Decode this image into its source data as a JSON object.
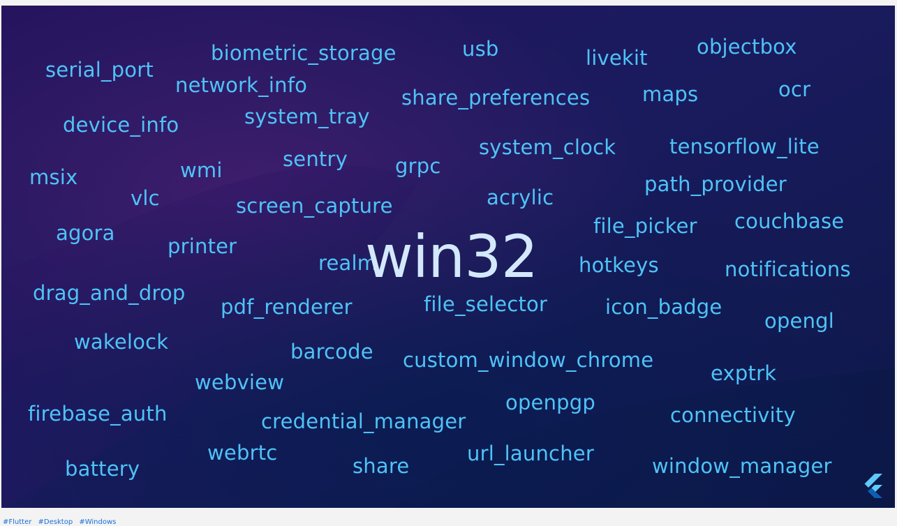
{
  "slide": {
    "center_word": "win32",
    "words": [
      {
        "id": "serial_port",
        "text": "serial_port"
      },
      {
        "id": "biometric_storage",
        "text": "biometric_storage"
      },
      {
        "id": "usb",
        "text": "usb"
      },
      {
        "id": "livekit",
        "text": "livekit"
      },
      {
        "id": "objectbox",
        "text": "objectbox"
      },
      {
        "id": "network_info",
        "text": "network_info"
      },
      {
        "id": "share_preferences",
        "text": "share_preferences"
      },
      {
        "id": "maps",
        "text": "maps"
      },
      {
        "id": "ocr",
        "text": "ocr"
      },
      {
        "id": "device_info",
        "text": "device_info"
      },
      {
        "id": "system_tray",
        "text": "system_tray"
      },
      {
        "id": "system_clock",
        "text": "system_clock"
      },
      {
        "id": "tensorflow_lite",
        "text": "tensorflow_lite"
      },
      {
        "id": "sentry",
        "text": "sentry"
      },
      {
        "id": "msix",
        "text": "msix"
      },
      {
        "id": "wmi",
        "text": "wmi"
      },
      {
        "id": "grpc",
        "text": "grpc"
      },
      {
        "id": "path_provider",
        "text": "path_provider"
      },
      {
        "id": "vlc",
        "text": "vlc"
      },
      {
        "id": "acrylic",
        "text": "acrylic"
      },
      {
        "id": "screen_capture",
        "text": "screen_capture"
      },
      {
        "id": "couchbase",
        "text": "couchbase"
      },
      {
        "id": "agora",
        "text": "agora"
      },
      {
        "id": "file_picker",
        "text": "file_picker"
      },
      {
        "id": "printer",
        "text": "printer"
      },
      {
        "id": "realm",
        "text": "realm"
      },
      {
        "id": "hotkeys",
        "text": "hotkeys"
      },
      {
        "id": "notifications",
        "text": "notifications"
      },
      {
        "id": "drag_and_drop",
        "text": "drag_and_drop"
      },
      {
        "id": "file_selector",
        "text": "file_selector"
      },
      {
        "id": "pdf_renderer",
        "text": "pdf_renderer"
      },
      {
        "id": "icon_badge",
        "text": "icon_badge"
      },
      {
        "id": "opengl",
        "text": "opengl"
      },
      {
        "id": "wakelock",
        "text": "wakelock"
      },
      {
        "id": "barcode",
        "text": "barcode"
      },
      {
        "id": "custom_window_chrome",
        "text": "custom_window_chrome"
      },
      {
        "id": "exptrk",
        "text": "exptrk"
      },
      {
        "id": "webview",
        "text": "webview"
      },
      {
        "id": "openpgp",
        "text": "openpgp"
      },
      {
        "id": "firebase_auth",
        "text": "firebase_auth"
      },
      {
        "id": "credential_manager",
        "text": "credential_manager"
      },
      {
        "id": "connectivity",
        "text": "connectivity"
      },
      {
        "id": "webrtc",
        "text": "webrtc"
      },
      {
        "id": "url_launcher",
        "text": "url_launcher"
      },
      {
        "id": "battery",
        "text": "battery"
      },
      {
        "id": "share",
        "text": "share"
      },
      {
        "id": "window_manager",
        "text": "window_manager"
      }
    ]
  },
  "logo_icon": "flutter-logo-icon",
  "hashtags": [
    "#Flutter",
    "#Desktop",
    "#Windows"
  ],
  "colors": {
    "word": "#4fc3f7",
    "center_word": "#d3e9fb",
    "background_dark": "#111650",
    "background_purple": "#3a1d6e",
    "hashtag_link": "#1a6fd6"
  }
}
